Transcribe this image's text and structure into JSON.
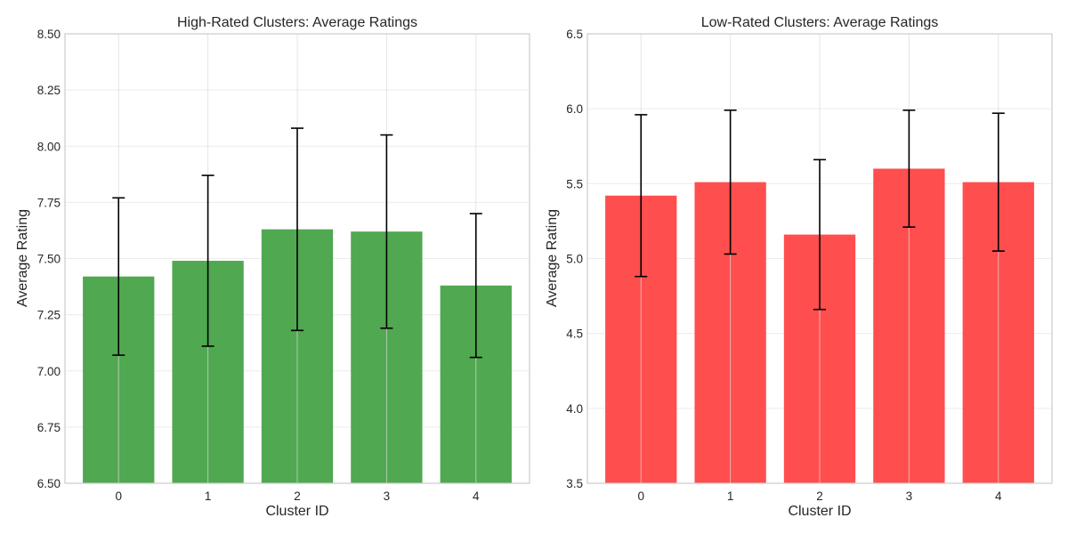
{
  "colors": {
    "high": "#4ca64c",
    "low": "#ff4a4a",
    "error_bar": "#000000"
  },
  "chart_data": [
    {
      "type": "bar",
      "title": "High-Rated Clusters: Average Ratings",
      "xlabel": "Cluster ID",
      "ylabel": "Average Rating",
      "categories": [
        "0",
        "1",
        "2",
        "3",
        "4"
      ],
      "values": [
        7.42,
        7.49,
        7.63,
        7.62,
        7.38
      ],
      "errors": [
        0.35,
        0.38,
        0.45,
        0.43,
        0.32
      ],
      "ylim": [
        6.5,
        8.5
      ],
      "yticks": [
        "6.50",
        "6.75",
        "7.00",
        "7.25",
        "7.50",
        "7.75",
        "8.00",
        "8.25",
        "8.50"
      ],
      "grid": true,
      "color": "#4ca64c"
    },
    {
      "type": "bar",
      "title": "Low-Rated Clusters: Average Ratings",
      "xlabel": "Cluster ID",
      "ylabel": "Average Rating",
      "categories": [
        "0",
        "1",
        "2",
        "3",
        "4"
      ],
      "values": [
        5.42,
        5.51,
        5.16,
        5.6,
        5.51
      ],
      "errors": [
        0.54,
        0.48,
        0.5,
        0.39,
        0.46
      ],
      "ylim": [
        3.5,
        6.5
      ],
      "yticks": [
        "3.5",
        "4.0",
        "4.5",
        "5.0",
        "5.5",
        "6.0",
        "6.5"
      ],
      "grid": true,
      "color": "#ff4a4a"
    }
  ]
}
